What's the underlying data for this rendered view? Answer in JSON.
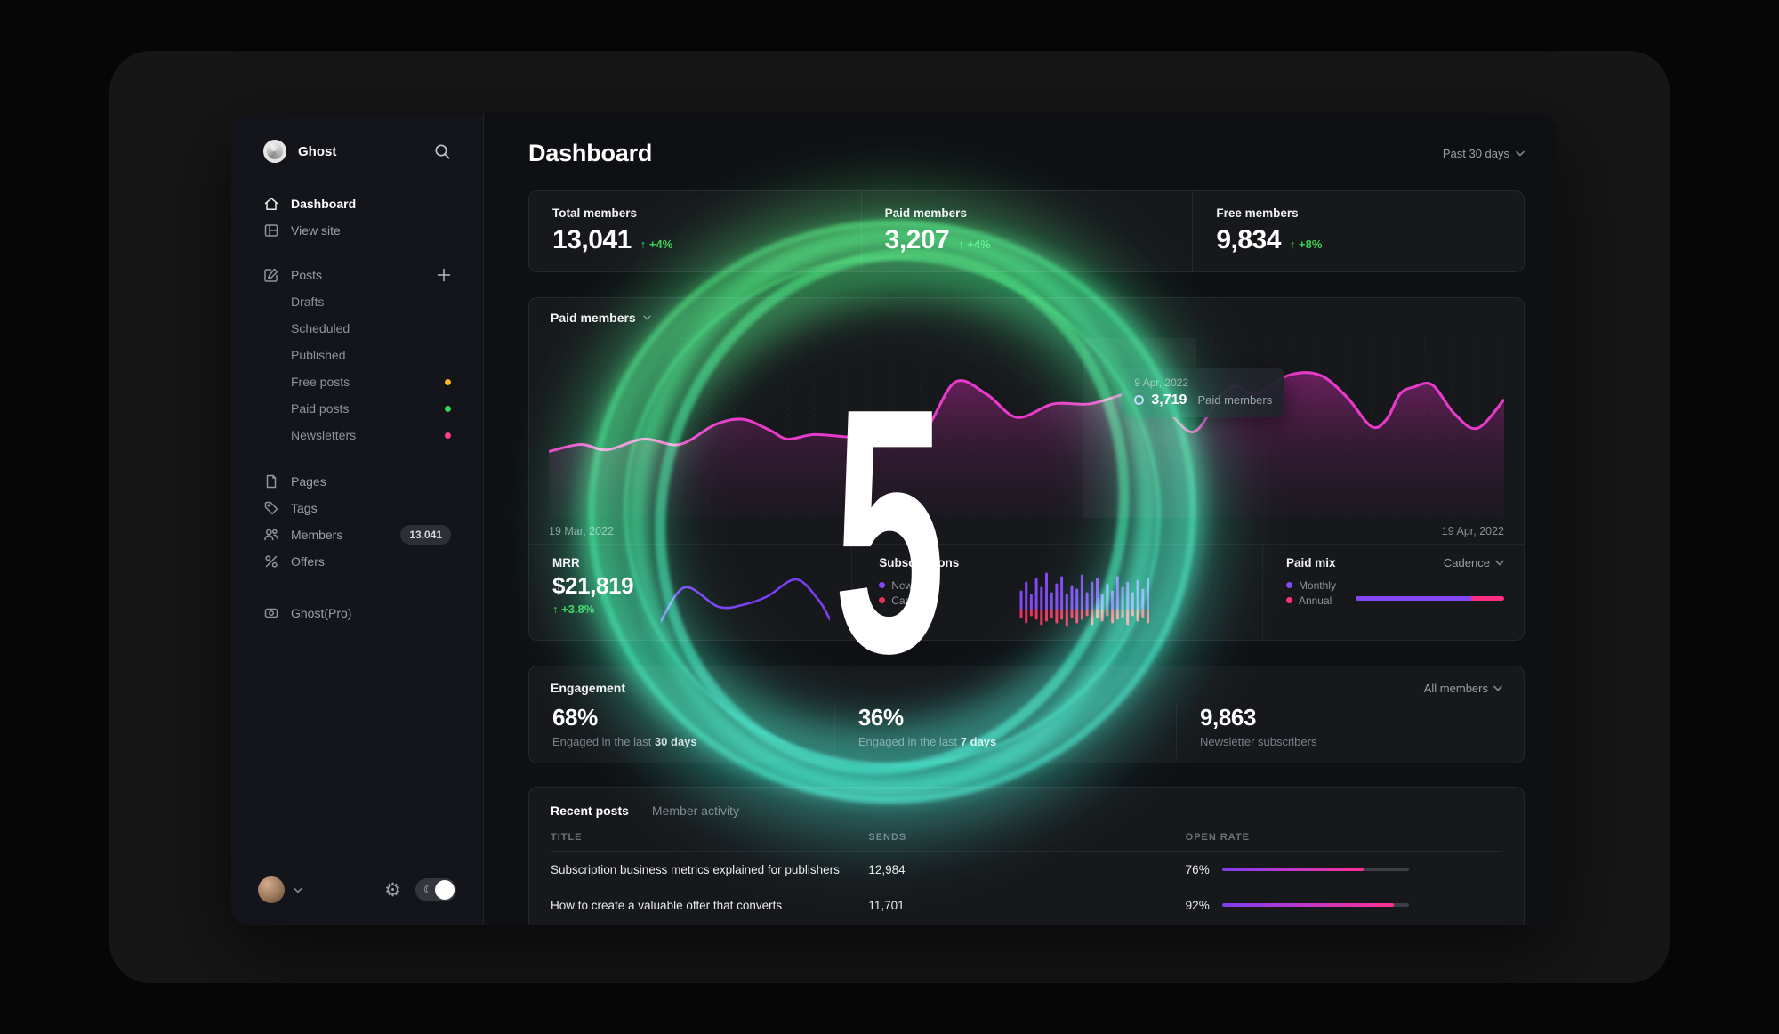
{
  "header": {
    "title": "Dashboard",
    "range_label": "Past 30 days"
  },
  "sidebar": {
    "brand": "Ghost",
    "nav_main": [
      {
        "label": "Dashboard"
      },
      {
        "label": "View site"
      }
    ],
    "posts_label": "Posts",
    "posts_sub": [
      {
        "label": "Drafts"
      },
      {
        "label": "Scheduled"
      },
      {
        "label": "Published"
      },
      {
        "label": "Free posts",
        "dot": "#ffb421"
      },
      {
        "label": "Paid posts",
        "dot": "#32d65b"
      },
      {
        "label": "Newsletters",
        "dot": "#fb3d8a"
      }
    ],
    "nav_secondary": [
      {
        "label": "Pages"
      },
      {
        "label": "Tags"
      },
      {
        "label": "Members",
        "badge": "13,041"
      },
      {
        "label": "Offers"
      }
    ],
    "pro_label": "Ghost(Pro)"
  },
  "stats": [
    {
      "label": "Total members",
      "value": "13,041",
      "delta": "↑ +4%"
    },
    {
      "label": "Paid members",
      "value": "3,207",
      "delta": "↑ +4%"
    },
    {
      "label": "Free members",
      "value": "9,834",
      "delta": "↑ +8%"
    }
  ],
  "paid_chart": {
    "title": "Paid members",
    "x_start": "19 Mar, 2022",
    "x_end": "19 Apr, 2022",
    "tooltip": {
      "date": "9 Apr, 2022",
      "value": "3,719",
      "series": "Paid members"
    }
  },
  "metrics": {
    "mrr": {
      "label": "MRR",
      "value": "$21,819",
      "delta": "↑ +3.8%"
    },
    "subscriptions": {
      "label": "Subscriptions",
      "legend": [
        {
          "label": "New",
          "color": "#8447f5"
        },
        {
          "label": "Canceled",
          "color": "#eb315e"
        }
      ]
    },
    "paid_mix": {
      "label": "Paid mix",
      "selector": "Cadence",
      "legend": [
        {
          "label": "Monthly",
          "color": "#8447f5"
        },
        {
          "label": "Annual",
          "color": "#fb2e83"
        }
      ]
    }
  },
  "engagement": {
    "label": "Engagement",
    "selector": "All members",
    "items": [
      {
        "value": "68%",
        "caption": "Engaged in the last",
        "caption_bold": "30 days"
      },
      {
        "value": "36%",
        "caption": "Engaged in the last",
        "caption_bold": "7 days"
      },
      {
        "value": "9,863",
        "caption": "Newsletter subscribers",
        "caption_bold": ""
      }
    ]
  },
  "recent": {
    "tabs": [
      {
        "label": "Recent posts"
      },
      {
        "label": "Member activity"
      }
    ],
    "columns": [
      "TITLE",
      "SENDS",
      "OPEN RATE"
    ],
    "rows": [
      {
        "title": "Subscription business metrics explained for publishers",
        "sends": "12,984",
        "open_rate": "76%",
        "open_rate_pct": 76
      },
      {
        "title": "How to create a valuable offer that converts",
        "sends": "11,701",
        "open_rate": "92%",
        "open_rate_pct": 92
      }
    ]
  },
  "overlay": {
    "numeral": "5"
  },
  "colors": {
    "accent_green": "#3ecf53",
    "line_magenta": "#e63bc8",
    "purple": "#8447f5",
    "pink": "#fb2e83",
    "crimson": "#eb315e"
  },
  "chart_data": [
    {
      "id": "paid-members-line",
      "type": "area",
      "color": "#e63bc8",
      "title": "Paid members",
      "x_range": [
        "19 Mar, 2022",
        "19 Apr, 2022"
      ],
      "highlight": {
        "x": 0.602,
        "value": 3719
      },
      "points": [
        [
          0,
          0.63
        ],
        [
          0.033,
          0.59
        ],
        [
          0.061,
          0.62
        ],
        [
          0.099,
          0.56
        ],
        [
          0.137,
          0.59
        ],
        [
          0.174,
          0.48
        ],
        [
          0.203,
          0.45
        ],
        [
          0.231,
          0.51
        ],
        [
          0.25,
          0.56
        ],
        [
          0.278,
          0.535
        ],
        [
          0.316,
          0.55
        ],
        [
          0.354,
          0.555
        ],
        [
          0.392,
          0.52
        ],
        [
          0.425,
          0.245
        ],
        [
          0.458,
          0.31
        ],
        [
          0.49,
          0.44
        ],
        [
          0.528,
          0.365
        ],
        [
          0.566,
          0.365
        ],
        [
          0.602,
          0.31
        ],
        [
          0.618,
          0.29
        ],
        [
          0.646,
          0.395
        ],
        [
          0.675,
          0.52
        ],
        [
          0.702,
          0.325
        ],
        [
          0.719,
          0.265
        ],
        [
          0.74,
          0.31
        ],
        [
          0.775,
          0.205
        ],
        [
          0.807,
          0.205
        ],
        [
          0.835,
          0.325
        ],
        [
          0.861,
          0.49
        ],
        [
          0.877,
          0.45
        ],
        [
          0.891,
          0.31
        ],
        [
          0.906,
          0.27
        ],
        [
          0.925,
          0.26
        ],
        [
          0.948,
          0.42
        ],
        [
          0.972,
          0.5
        ],
        [
          1,
          0.34
        ]
      ]
    },
    {
      "id": "mrr-sparkline",
      "type": "line",
      "color": "#7b3ff2",
      "points": [
        [
          0,
          52
        ],
        [
          27,
          14
        ],
        [
          65,
          36
        ],
        [
          95,
          33
        ],
        [
          120,
          24
        ],
        [
          152,
          5
        ],
        [
          177,
          28
        ],
        [
          190,
          50
        ]
      ]
    },
    {
      "id": "subscriptions-bars",
      "type": "bar",
      "colors": {
        "new": "#8447f5",
        "canceled": "#eb315e"
      },
      "bars": [
        [
          20,
          8
        ],
        [
          30,
          14
        ],
        [
          16,
          6
        ],
        [
          34,
          10
        ],
        [
          24,
          16
        ],
        [
          40,
          12
        ],
        [
          18,
          8
        ],
        [
          28,
          14
        ],
        [
          36,
          10
        ],
        [
          16,
          18
        ],
        [
          26,
          8
        ],
        [
          22,
          14
        ],
        [
          38,
          10
        ],
        [
          18,
          6
        ],
        [
          30,
          16
        ],
        [
          34,
          8
        ],
        [
          16,
          12
        ],
        [
          28,
          6
        ],
        [
          20,
          14
        ],
        [
          36,
          10
        ],
        [
          24,
          8
        ],
        [
          30,
          16
        ],
        [
          18,
          6
        ],
        [
          32,
          12
        ],
        [
          22,
          8
        ],
        [
          34,
          14
        ]
      ]
    },
    {
      "id": "paid-mix",
      "type": "bar",
      "segments": [
        {
          "name": "Monthly",
          "pct": 78,
          "color": "#8447f5"
        },
        {
          "name": "Annual",
          "pct": 22,
          "color": "#fb2e83"
        }
      ]
    },
    {
      "id": "open-rate",
      "type": "bar",
      "values": [
        76,
        92
      ]
    }
  ]
}
